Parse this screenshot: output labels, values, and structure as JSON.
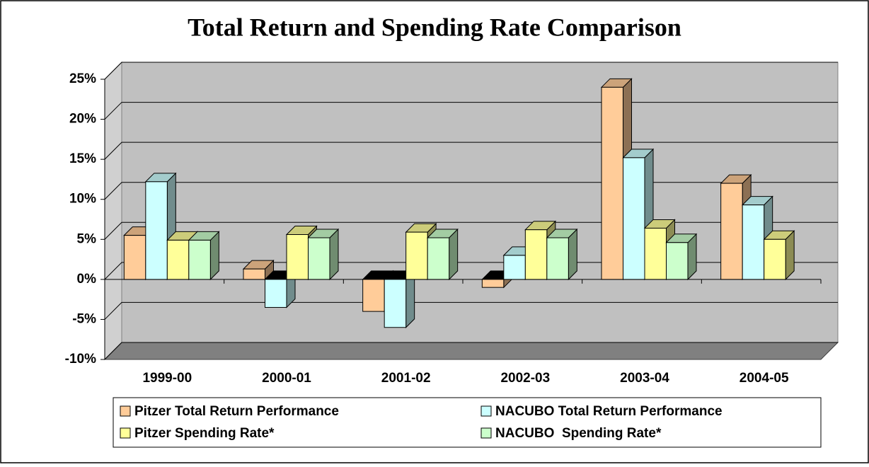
{
  "chart_data": {
    "type": "bar3d",
    "title": "Total Return and Spending Rate Comparison",
    "categories": [
      "1999-00",
      "2000-01",
      "2001-02",
      "2002-03",
      "2003-04",
      "2004-05"
    ],
    "series": [
      {
        "name": "Pitzer Total Return Performance",
        "color": "#ffcc99",
        "values": [
          5.5,
          1.3,
          -4,
          -1,
          24,
          12
        ]
      },
      {
        "name": "NACUBO Total Return Performance",
        "color": "#ccffff",
        "values": [
          12.2,
          -3.5,
          -6,
          3,
          15.2,
          9.3
        ]
      },
      {
        "name": "Pitzer Spending Rate*",
        "color": "#ffff99",
        "values": [
          4.9,
          5.6,
          5.9,
          6.2,
          6.4,
          5.0
        ]
      },
      {
        "name": "NACUBO  Spending Rate*",
        "color": "#ccffcc",
        "values": [
          4.9,
          5.2,
          5.2,
          5.2,
          4.6,
          null
        ]
      }
    ],
    "ylim": [
      -10,
      25
    ],
    "yticks": [
      {
        "value": -10,
        "label": "-10%"
      },
      {
        "value": -5,
        "label": "-5%"
      },
      {
        "value": 0,
        "label": "0%"
      },
      {
        "value": 5,
        "label": "5%"
      },
      {
        "value": 10,
        "label": "10%"
      },
      {
        "value": 15,
        "label": "15%"
      },
      {
        "value": 20,
        "label": "20%"
      },
      {
        "value": 25,
        "label": "25%"
      }
    ],
    "grid": true
  }
}
